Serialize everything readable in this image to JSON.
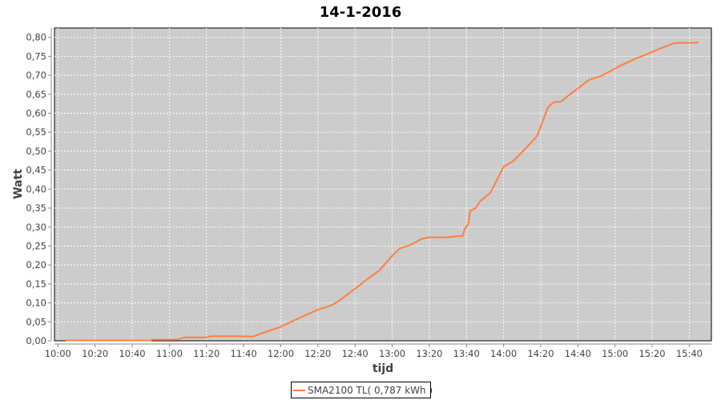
{
  "chart_data": {
    "type": "line",
    "title": "14-1-2016",
    "xlabel": "tijd",
    "ylabel": "Watt",
    "xlim": [
      "10:00",
      "15:52"
    ],
    "ylim": [
      0,
      0.82
    ],
    "grid": true,
    "legend_placement": "bottom",
    "x_ticks": [
      "10:00",
      "10:20",
      "10:40",
      "11:00",
      "11:20",
      "11:40",
      "12:00",
      "12:20",
      "12:40",
      "13:00",
      "13:20",
      "13:40",
      "14:00",
      "14:20",
      "14:40",
      "15:00",
      "15:20",
      "15:40"
    ],
    "y_ticks": [
      "0,00",
      "0,05",
      "0,10",
      "0,15",
      "0,20",
      "0,25",
      "0,30",
      "0,35",
      "0,40",
      "0,45",
      "0,50",
      "0,55",
      "0,60",
      "0,65",
      "0,70",
      "0,75",
      "0,80"
    ],
    "colors": {
      "plot_background": "#cccccc",
      "grid": "#ffffff",
      "series": "#ff7f3f"
    },
    "series": [
      {
        "name": "SMA2100 TL( 0,787 kWh )",
        "x": [
          "10:04",
          "10:50",
          "10:51",
          "11:04",
          "11:06",
          "11:08",
          "11:20",
          "11:22",
          "11:38",
          "11:45",
          "11:50",
          "12:00",
          "12:05",
          "12:14",
          "12:20",
          "12:27",
          "12:31",
          "12:40",
          "12:46",
          "12:53",
          "13:00",
          "13:04",
          "13:10",
          "13:16",
          "13:20",
          "13:30",
          "13:35",
          "13:38",
          "13:39",
          "13:41",
          "13:42",
          "13:45",
          "13:47",
          "13:53",
          "13:56",
          "14:00",
          "14:05",
          "14:10",
          "14:13",
          "14:18",
          "14:20",
          "14:24",
          "14:27",
          "14:31",
          "14:36",
          "14:41",
          "14:46",
          "14:52",
          "14:56",
          "15:02",
          "15:11",
          "15:18",
          "15:24",
          "15:32",
          "15:45"
        ],
        "y": [
          0.001,
          0.001,
          0.003,
          0.003,
          0.006,
          0.009,
          0.009,
          0.012,
          0.012,
          0.011,
          0.02,
          0.037,
          0.049,
          0.069,
          0.082,
          0.093,
          0.104,
          0.137,
          0.16,
          0.185,
          0.224,
          0.243,
          0.253,
          0.269,
          0.273,
          0.273,
          0.276,
          0.276,
          0.294,
          0.308,
          0.343,
          0.35,
          0.366,
          0.391,
          0.42,
          0.459,
          0.473,
          0.498,
          0.513,
          0.54,
          0.565,
          0.617,
          0.629,
          0.631,
          0.651,
          0.669,
          0.688,
          0.697,
          0.707,
          0.723,
          0.744,
          0.757,
          0.77,
          0.785,
          0.786
        ]
      }
    ]
  }
}
